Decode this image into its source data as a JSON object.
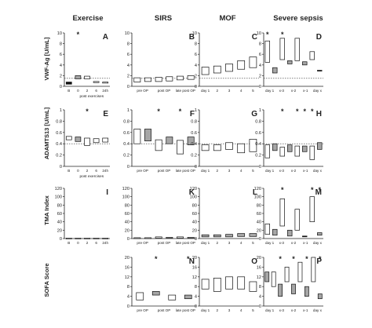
{
  "columns": [
    "Exercise",
    "SIRS",
    "MOF",
    "Severe sepsis"
  ],
  "rows": [
    "VWF-Ag [U/mL]",
    "ADAMTS13 [U/mL]",
    "TMA Index",
    "SOFA Score"
  ],
  "categories": {
    "exercise": [
      "B",
      "0",
      "2",
      "6",
      "24h"
    ],
    "exercise_sub": "post exercises",
    "sirs": [
      "pre OP",
      "post OP",
      "late post OP"
    ],
    "mof": [
      "day 1",
      "2",
      "3",
      "4",
      "5"
    ],
    "sepsis": [
      "day 1",
      "x-3",
      "x-2",
      "x-1",
      "day x"
    ]
  },
  "chart_data": [
    {
      "type": "box",
      "panel": "A",
      "row": 0,
      "col": 0,
      "ylim": [
        0,
        10
      ],
      "yticks": [
        0,
        2,
        4,
        6,
        8,
        10
      ],
      "ref": 1.5,
      "boxes": [
        {
          "lo": 0.4,
          "hi": 0.8,
          "fill": "black"
        },
        {
          "lo": 1.4,
          "hi": 2.0,
          "fill": "gray"
        },
        {
          "lo": 1.4,
          "hi": 1.9,
          "fill": "white"
        },
        {
          "lo": 0.7,
          "hi": 0.9,
          "fill": "white"
        },
        {
          "lo": 0.6,
          "hi": 0.8,
          "fill": "white"
        }
      ],
      "stars": [
        1
      ]
    },
    {
      "type": "box",
      "panel": "B",
      "row": 0,
      "col": 1,
      "ylim": [
        0,
        10
      ],
      "yticks": [
        0,
        2,
        4,
        6,
        8,
        10
      ],
      "ref": 1.5,
      "boxes": [
        {
          "lo": 0.8,
          "hi": 1.6,
          "fill": "white"
        },
        {
          "lo": 0.9,
          "hi": 1.6,
          "fill": "white"
        },
        {
          "lo": 0.9,
          "hi": 1.7,
          "fill": "white"
        },
        {
          "lo": 1.0,
          "hi": 1.8,
          "fill": "white"
        },
        {
          "lo": 1.2,
          "hi": 1.9,
          "fill": "white"
        },
        {
          "lo": 1.3,
          "hi": 2.0,
          "fill": "white"
        }
      ],
      "stars": []
    },
    {
      "type": "box",
      "panel": "C",
      "row": 0,
      "col": 2,
      "ylim": [
        0,
        10
      ],
      "yticks": [
        0,
        2,
        4,
        6,
        8,
        10
      ],
      "ref": 1.5,
      "boxes": [
        {
          "lo": 2.2,
          "hi": 3.6,
          "fill": "white"
        },
        {
          "lo": 2.5,
          "hi": 3.8,
          "fill": "white"
        },
        {
          "lo": 2.8,
          "hi": 4.2,
          "fill": "white"
        },
        {
          "lo": 3.2,
          "hi": 4.8,
          "fill": "white"
        },
        {
          "lo": 3.5,
          "hi": 5.5,
          "fill": "white"
        }
      ],
      "stars": []
    },
    {
      "type": "box",
      "panel": "D",
      "row": 0,
      "col": 3,
      "ylim": [
        0,
        10
      ],
      "yticks": [
        0,
        2,
        4,
        6,
        8,
        10
      ],
      "ref": 1.5,
      "boxes": [
        {
          "lo": 4.5,
          "hi": 8.5,
          "fill": "white"
        },
        {
          "lo": 2.5,
          "hi": 3.5,
          "fill": "gray"
        },
        {
          "lo": 5.0,
          "hi": 9.0,
          "fill": "white"
        },
        {
          "lo": 4.2,
          "hi": 4.8,
          "fill": "gray"
        },
        {
          "lo": 4.8,
          "hi": 9.0,
          "fill": "white"
        },
        {
          "lo": 4.0,
          "hi": 4.6,
          "fill": "gray"
        },
        {
          "lo": 5.0,
          "hi": 6.5,
          "fill": "white"
        },
        {
          "lo": 2.9,
          "hi": 3.0,
          "fill": "black"
        }
      ],
      "stars": [
        0,
        2
      ]
    },
    {
      "type": "box",
      "panel": "E",
      "row": 1,
      "col": 0,
      "ylim": [
        0,
        1
      ],
      "yticks": [
        0,
        0.2,
        0.4,
        0.6,
        0.8,
        1.0
      ],
      "ref": 0.4,
      "boxes": [
        {
          "lo": 0.47,
          "hi": 0.53,
          "fill": "white"
        },
        {
          "lo": 0.44,
          "hi": 0.52,
          "fill": "gray"
        },
        {
          "lo": 0.37,
          "hi": 0.5,
          "fill": "white"
        },
        {
          "lo": 0.42,
          "hi": 0.49,
          "fill": "white"
        },
        {
          "lo": 0.43,
          "hi": 0.5,
          "fill": "white"
        }
      ],
      "stars": [
        2
      ]
    },
    {
      "type": "box",
      "panel": "F",
      "row": 1,
      "col": 1,
      "ylim": [
        0,
        1
      ],
      "yticks": [
        0,
        0.2,
        0.4,
        0.6,
        0.8,
        1.0
      ],
      "ref": 0.4,
      "boxes": [
        {
          "lo": 0.4,
          "hi": 0.66,
          "fill": "white"
        },
        {
          "lo": 0.45,
          "hi": 0.66,
          "fill": "gray"
        },
        {
          "lo": 0.28,
          "hi": 0.47,
          "fill": "white"
        },
        {
          "lo": 0.4,
          "hi": 0.52,
          "fill": "gray"
        },
        {
          "lo": 0.22,
          "hi": 0.46,
          "fill": "white"
        },
        {
          "lo": 0.38,
          "hi": 0.52,
          "fill": "gray"
        }
      ],
      "stars": [
        2,
        4
      ]
    },
    {
      "type": "box",
      "panel": "G",
      "row": 1,
      "col": 2,
      "ylim": [
        0,
        1
      ],
      "yticks": [
        0,
        0.2,
        0.4,
        0.6,
        0.8,
        1.0
      ],
      "ref": 0.4,
      "boxes": [
        {
          "lo": 0.28,
          "hi": 0.38,
          "fill": "white"
        },
        {
          "lo": 0.28,
          "hi": 0.38,
          "fill": "white"
        },
        {
          "lo": 0.3,
          "hi": 0.42,
          "fill": "white"
        },
        {
          "lo": 0.24,
          "hi": 0.4,
          "fill": "white"
        },
        {
          "lo": 0.26,
          "hi": 0.48,
          "fill": "white"
        }
      ],
      "stars": []
    },
    {
      "type": "box",
      "panel": "H",
      "row": 1,
      "col": 3,
      "ylim": [
        0,
        1
      ],
      "yticks": [
        0,
        0.2,
        0.4,
        0.6,
        0.8,
        1.0
      ],
      "ref": 0.4,
      "boxes": [
        {
          "lo": 0.15,
          "hi": 0.38,
          "fill": "white"
        },
        {
          "lo": 0.28,
          "hi": 0.4,
          "fill": "gray"
        },
        {
          "lo": 0.18,
          "hi": 0.34,
          "fill": "white"
        },
        {
          "lo": 0.26,
          "hi": 0.38,
          "fill": "gray"
        },
        {
          "lo": 0.18,
          "hi": 0.36,
          "fill": "white"
        },
        {
          "lo": 0.26,
          "hi": 0.36,
          "fill": "gray"
        },
        {
          "lo": 0.12,
          "hi": 0.36,
          "fill": "white"
        },
        {
          "lo": 0.3,
          "hi": 0.42,
          "fill": "gray"
        }
      ],
      "stars": [
        2,
        4,
        5,
        6
      ]
    },
    {
      "type": "box",
      "panel": "I",
      "row": 2,
      "col": 0,
      "ylim": [
        0,
        120
      ],
      "yticks": [
        0,
        20,
        40,
        60,
        80,
        100,
        120
      ],
      "ref": null,
      "boxes": [
        {
          "lo": 0,
          "hi": 1,
          "fill": "white"
        },
        {
          "lo": 0,
          "hi": 1,
          "fill": "white"
        },
        {
          "lo": 0,
          "hi": 1,
          "fill": "white"
        },
        {
          "lo": 0,
          "hi": 1,
          "fill": "white"
        },
        {
          "lo": 0,
          "hi": 1,
          "fill": "white"
        }
      ],
      "stars": []
    },
    {
      "type": "box",
      "panel": "K",
      "row": 2,
      "col": 1,
      "ylim": [
        0,
        120
      ],
      "yticks": [
        0,
        20,
        40,
        60,
        80,
        100,
        120
      ],
      "ref": null,
      "boxes": [
        {
          "lo": 0,
          "hi": 2,
          "fill": "white"
        },
        {
          "lo": 0,
          "hi": 2,
          "fill": "white"
        },
        {
          "lo": 1,
          "hi": 4,
          "fill": "white"
        },
        {
          "lo": 1,
          "hi": 3,
          "fill": "white"
        },
        {
          "lo": 1,
          "hi": 4,
          "fill": "white"
        },
        {
          "lo": 1,
          "hi": 3,
          "fill": "white"
        }
      ],
      "stars": []
    },
    {
      "type": "box",
      "panel": "L",
      "row": 2,
      "col": 2,
      "ylim": [
        0,
        120
      ],
      "yticks": [
        0,
        20,
        40,
        60,
        80,
        100,
        120
      ],
      "ref": null,
      "boxes": [
        {
          "lo": 4,
          "hi": 9,
          "fill": "gray"
        },
        {
          "lo": 4,
          "hi": 9,
          "fill": "gray"
        },
        {
          "lo": 4,
          "hi": 10,
          "fill": "gray"
        },
        {
          "lo": 5,
          "hi": 12,
          "fill": "gray"
        },
        {
          "lo": 5,
          "hi": 12,
          "fill": "gray"
        }
      ],
      "stars": []
    },
    {
      "type": "box",
      "panel": "M",
      "row": 2,
      "col": 3,
      "ylim": [
        0,
        120
      ],
      "yticks": [
        0,
        20,
        40,
        60,
        80,
        100,
        120
      ],
      "ref": null,
      "boxes": [
        {
          "lo": 10,
          "hi": 35,
          "fill": "white"
        },
        {
          "lo": 8,
          "hi": 22,
          "fill": "gray"
        },
        {
          "lo": 30,
          "hi": 95,
          "fill": "white"
        },
        {
          "lo": 6,
          "hi": 20,
          "fill": "gray"
        },
        {
          "lo": 20,
          "hi": 70,
          "fill": "white"
        },
        {
          "lo": 5,
          "hi": 6,
          "fill": "black"
        },
        {
          "lo": 40,
          "hi": 100,
          "fill": "white"
        },
        {
          "lo": 8,
          "hi": 14,
          "fill": "gray"
        }
      ],
      "stars": [
        2,
        6,
        7
      ]
    },
    {
      "type": "box",
      "panel": "N",
      "row": 3,
      "col": 1,
      "ylim": [
        0,
        20
      ],
      "yticks": [
        0,
        4,
        8,
        12,
        16,
        20
      ],
      "ref": null,
      "boxes": [
        {
          "lo": 2.5,
          "hi": 5.5,
          "fill": "white"
        },
        {
          "lo": 4.5,
          "hi": 6.0,
          "fill": "gray"
        },
        {
          "lo": 2.5,
          "hi": 4.5,
          "fill": "white"
        },
        {
          "lo": 3.0,
          "hi": 4.5,
          "fill": "gray"
        }
      ],
      "stars": [
        1,
        3
      ]
    },
    {
      "type": "box",
      "panel": "O",
      "row": 3,
      "col": 2,
      "ylim": [
        0,
        20
      ],
      "yticks": [
        0,
        4,
        8,
        12,
        16,
        20
      ],
      "ref": null,
      "boxes": [
        {
          "lo": 7,
          "hi": 11,
          "fill": "white"
        },
        {
          "lo": 6,
          "hi": 11.5,
          "fill": "white"
        },
        {
          "lo": 7,
          "hi": 12,
          "fill": "white"
        },
        {
          "lo": 7,
          "hi": 12,
          "fill": "white"
        },
        {
          "lo": 6,
          "hi": 10,
          "fill": "white"
        }
      ],
      "stars": []
    },
    {
      "type": "box",
      "panel": "P",
      "row": 3,
      "col": 3,
      "ylim": [
        0,
        20
      ],
      "yticks": [
        0,
        4,
        8,
        12,
        16,
        20
      ],
      "ref": null,
      "boxes": [
        {
          "lo": 10,
          "hi": 14,
          "fill": "gray"
        },
        {
          "lo": 8,
          "hi": 14,
          "fill": "white"
        },
        {
          "lo": 4,
          "hi": 9,
          "fill": "gray"
        },
        {
          "lo": 10,
          "hi": 16,
          "fill": "white"
        },
        {
          "lo": 5,
          "hi": 9,
          "fill": "gray"
        },
        {
          "lo": 10,
          "hi": 18,
          "fill": "white"
        },
        {
          "lo": 4,
          "hi": 8,
          "fill": "gray"
        },
        {
          "lo": 10,
          "hi": 20,
          "fill": "white"
        },
        {
          "lo": 3,
          "hi": 5,
          "fill": "gray"
        }
      ],
      "stars": [
        2,
        4,
        6,
        8
      ]
    }
  ]
}
